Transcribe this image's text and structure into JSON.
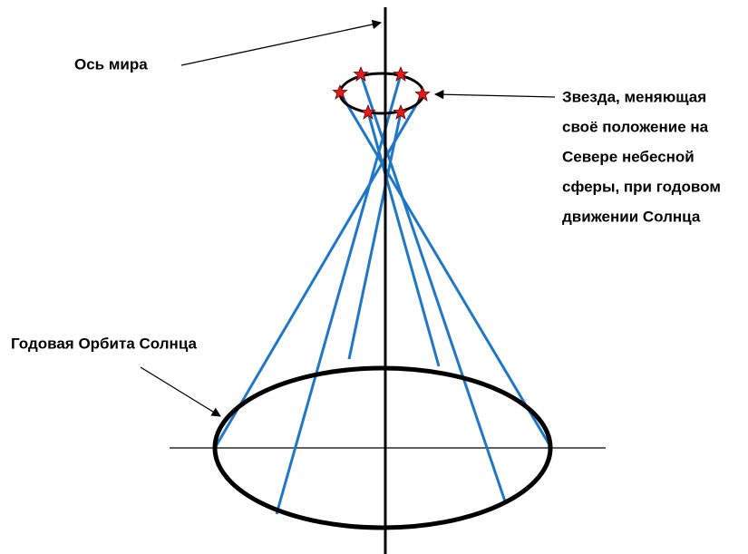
{
  "labels": {
    "axis": "Ось мира",
    "star": [
      "Звезда, меняющая",
      "своё положение на",
      "Севере небесной",
      "сферы, при годовом",
      "движении Солнца"
    ],
    "orbit": "Годовая Орбита Солнца"
  }
}
